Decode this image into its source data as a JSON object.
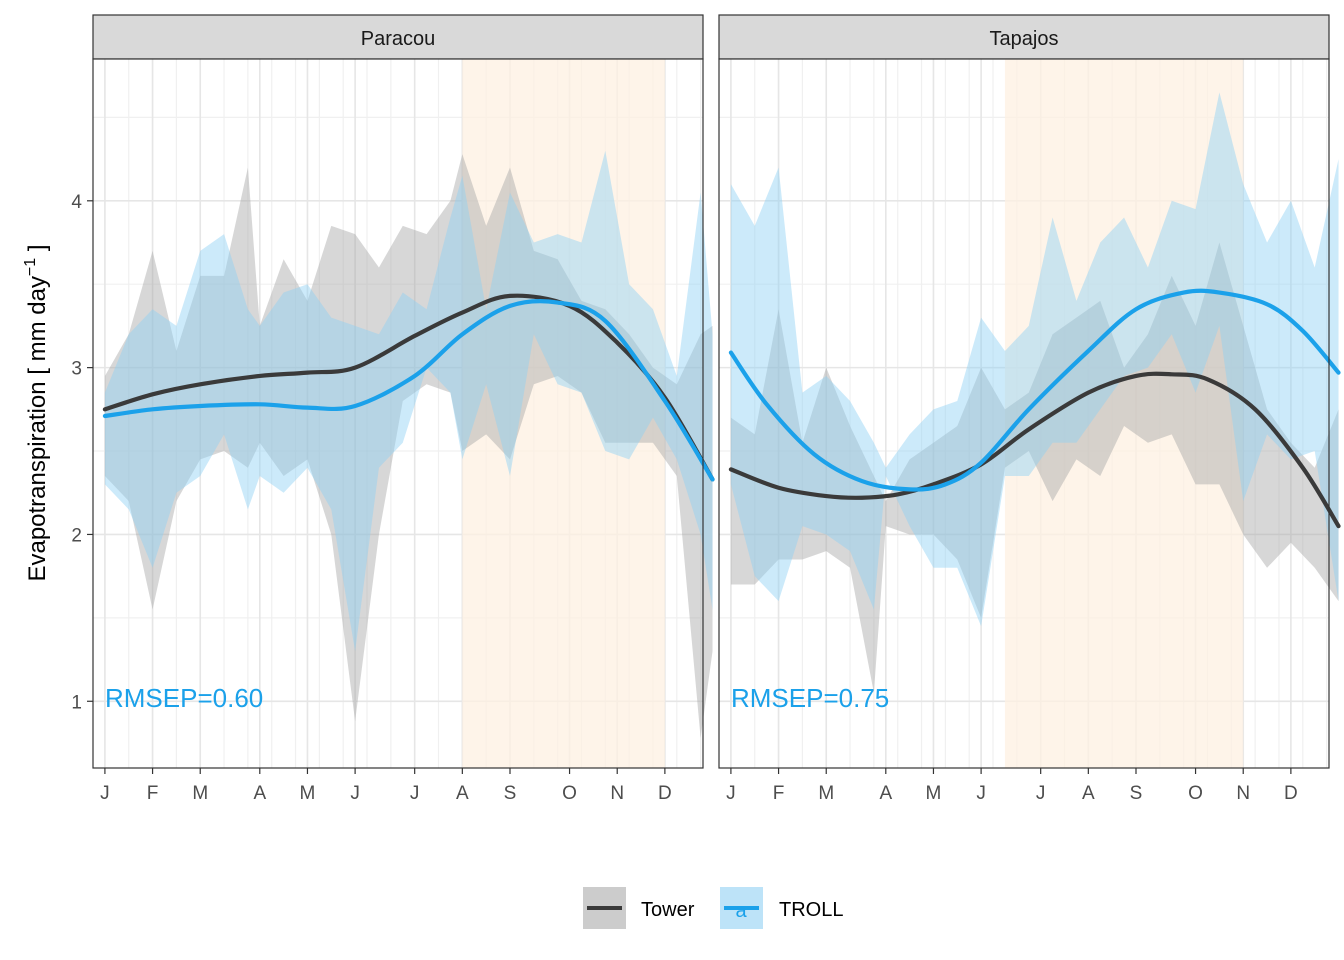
{
  "chart_data": {
    "type": "line",
    "ylabel": "Evapotranspiration [ mm day",
    "ylabel_sup": "−1",
    "ylabel_close": " ]",
    "ylim": [
      0.6,
      4.85
    ],
    "yticks": [
      1,
      2,
      3,
      4
    ],
    "ytick_labels": [
      "1",
      "2",
      "3",
      "4"
    ],
    "xlim": [
      0.0,
      51.2
    ],
    "grid": true,
    "legend": {
      "position": "bottom",
      "entries": [
        {
          "name": "Tower",
          "line_color": "#3a3a3a",
          "fill_color": "#cccccc"
        },
        {
          "name": "TROLL",
          "line_color": "#1ba1ea",
          "fill_color": "#bde3f8",
          "key_glyph": "a"
        }
      ]
    },
    "colors": {
      "tower_line": "#3a3a3a",
      "tower_fill": "#a6a6a6",
      "troll_line": "#1ba1ea",
      "troll_fill": "#8dd0f5",
      "dry_season": "#fdf0e1",
      "strip_bg": "#d9d9d9",
      "rmsep_text": "#1ba1ea"
    },
    "panels": [
      {
        "strip": "Paracou",
        "rmsep": "RMSEP=0.60",
        "xtick_labels": [
          "J",
          "F",
          "M",
          "A",
          "M",
          "J",
          "J",
          "A",
          "S",
          "O",
          "N",
          "D"
        ],
        "xtick_weeks": [
          1,
          5,
          9,
          14,
          18,
          22,
          27,
          31,
          35,
          40,
          44,
          48
        ],
        "dry_season_weeks": [
          31,
          48
        ],
        "tower_line": {
          "x": [
            1,
            5,
            9,
            14,
            18,
            22,
            27,
            31,
            35,
            40,
            44,
            48,
            52
          ],
          "y": [
            2.75,
            2.84,
            2.9,
            2.95,
            2.97,
            3.0,
            3.19,
            3.33,
            3.43,
            3.37,
            3.15,
            2.82,
            2.33
          ]
        },
        "troll_line": {
          "x": [
            1,
            5,
            9,
            14,
            18,
            22,
            27,
            31,
            35,
            39,
            43,
            48,
            52
          ],
          "y": [
            2.71,
            2.75,
            2.77,
            2.78,
            2.76,
            2.77,
            2.95,
            3.2,
            3.37,
            3.39,
            3.28,
            2.8,
            2.33
          ]
        },
        "tower_band": {
          "x": [
            1,
            3,
            5,
            7,
            9,
            11,
            13,
            14,
            16,
            18,
            20,
            22,
            24,
            26,
            28,
            30,
            31,
            33,
            35,
            37,
            39,
            41,
            43,
            45,
            47,
            49,
            51,
            52
          ],
          "lower": [
            2.35,
            2.2,
            1.55,
            2.2,
            2.45,
            2.5,
            2.4,
            2.55,
            2.35,
            2.45,
            2.0,
            0.88,
            2.0,
            2.8,
            2.9,
            2.85,
            2.5,
            2.6,
            2.45,
            2.9,
            2.95,
            2.85,
            2.55,
            2.55,
            2.55,
            2.35,
            0.78,
            1.3
          ],
          "upper": [
            2.95,
            3.2,
            3.7,
            3.1,
            3.55,
            3.55,
            4.2,
            3.25,
            3.65,
            3.4,
            3.85,
            3.8,
            3.6,
            3.85,
            3.8,
            4.0,
            4.28,
            3.85,
            4.2,
            3.7,
            3.65,
            3.4,
            3.35,
            3.2,
            3.0,
            2.9,
            3.2,
            3.25
          ]
        },
        "troll_band": {
          "x": [
            1,
            3,
            5,
            7,
            9,
            11,
            13,
            14,
            16,
            18,
            20,
            22,
            24,
            26,
            28,
            30,
            31,
            33,
            35,
            37,
            39,
            41,
            43,
            45,
            47,
            49,
            51,
            52
          ],
          "lower": [
            2.3,
            2.15,
            1.8,
            2.25,
            2.35,
            2.6,
            2.15,
            2.35,
            2.25,
            2.4,
            2.15,
            1.3,
            2.4,
            2.55,
            3.0,
            2.85,
            2.45,
            2.9,
            2.35,
            3.2,
            2.9,
            2.85,
            2.5,
            2.45,
            2.7,
            2.45,
            2.0,
            1.55
          ],
          "upper": [
            2.85,
            3.2,
            3.35,
            3.25,
            3.7,
            3.8,
            3.35,
            3.25,
            3.45,
            3.5,
            3.3,
            3.25,
            3.2,
            3.45,
            3.35,
            3.9,
            4.15,
            3.35,
            4.05,
            3.75,
            3.8,
            3.75,
            4.3,
            3.5,
            3.35,
            2.95,
            4.05,
            3.2
          ]
        }
      },
      {
        "strip": "Tapajos",
        "rmsep": "RMSEP=0.75",
        "xtick_labels": [
          "J",
          "F",
          "M",
          "A",
          "M",
          "J",
          "J",
          "A",
          "S",
          "O",
          "N",
          "D"
        ],
        "xtick_weeks": [
          1,
          5,
          9,
          14,
          18,
          22,
          27,
          31,
          35,
          40,
          44,
          48
        ],
        "dry_season_weeks": [
          24,
          44
        ],
        "tower_line": {
          "x": [
            1,
            5,
            9,
            12,
            15,
            18,
            22,
            26,
            31,
            35,
            38,
            41,
            45,
            49,
            52
          ],
          "y": [
            2.39,
            2.28,
            2.23,
            2.22,
            2.24,
            2.3,
            2.42,
            2.63,
            2.85,
            2.95,
            2.96,
            2.93,
            2.75,
            2.4,
            2.05
          ]
        },
        "troll_line": {
          "x": [
            1,
            4,
            8,
            12,
            16,
            19,
            22,
            26,
            31,
            35,
            39,
            42,
            46,
            49,
            52
          ],
          "y": [
            3.09,
            2.78,
            2.48,
            2.32,
            2.27,
            2.3,
            2.43,
            2.75,
            3.1,
            3.35,
            3.45,
            3.45,
            3.38,
            3.22,
            2.97
          ]
        },
        "tower_band": {
          "x": [
            1,
            3,
            5,
            7,
            9,
            11,
            13,
            14,
            16,
            18,
            20,
            22,
            24,
            26,
            28,
            30,
            32,
            34,
            36,
            38,
            40,
            42,
            44,
            46,
            48,
            50,
            52
          ],
          "lower": [
            1.7,
            1.7,
            1.85,
            1.85,
            1.9,
            1.8,
            1.05,
            2.05,
            2.0,
            2.0,
            1.85,
            1.5,
            2.4,
            2.5,
            2.2,
            2.45,
            2.35,
            2.65,
            2.55,
            2.6,
            2.3,
            2.3,
            2.0,
            1.8,
            1.95,
            1.8,
            1.6
          ],
          "upper": [
            2.7,
            2.6,
            3.35,
            2.55,
            3.0,
            2.65,
            2.35,
            2.2,
            2.45,
            2.55,
            2.65,
            3.0,
            2.75,
            2.85,
            3.2,
            3.3,
            3.4,
            3.0,
            3.2,
            3.55,
            3.25,
            3.75,
            3.25,
            2.75,
            2.55,
            2.4,
            2.75
          ]
        },
        "troll_band": {
          "x": [
            1,
            3,
            5,
            7,
            9,
            11,
            13,
            14,
            16,
            18,
            20,
            22,
            24,
            26,
            28,
            30,
            32,
            34,
            36,
            38,
            40,
            42,
            44,
            46,
            48,
            50,
            52
          ],
          "lower": [
            2.3,
            1.75,
            1.6,
            2.05,
            2.0,
            1.9,
            1.55,
            2.35,
            2.05,
            1.8,
            1.8,
            1.45,
            2.35,
            2.35,
            2.55,
            2.55,
            2.75,
            2.95,
            3.0,
            3.2,
            2.85,
            3.25,
            2.2,
            2.6,
            2.45,
            2.5,
            1.6
          ],
          "upper": [
            4.1,
            3.85,
            4.2,
            2.85,
            2.95,
            2.8,
            2.55,
            2.4,
            2.6,
            2.75,
            2.8,
            3.3,
            3.1,
            3.25,
            3.9,
            3.4,
            3.75,
            3.9,
            3.6,
            4.0,
            3.95,
            4.65,
            4.1,
            3.75,
            4.0,
            3.6,
            4.25
          ]
        }
      }
    ]
  }
}
